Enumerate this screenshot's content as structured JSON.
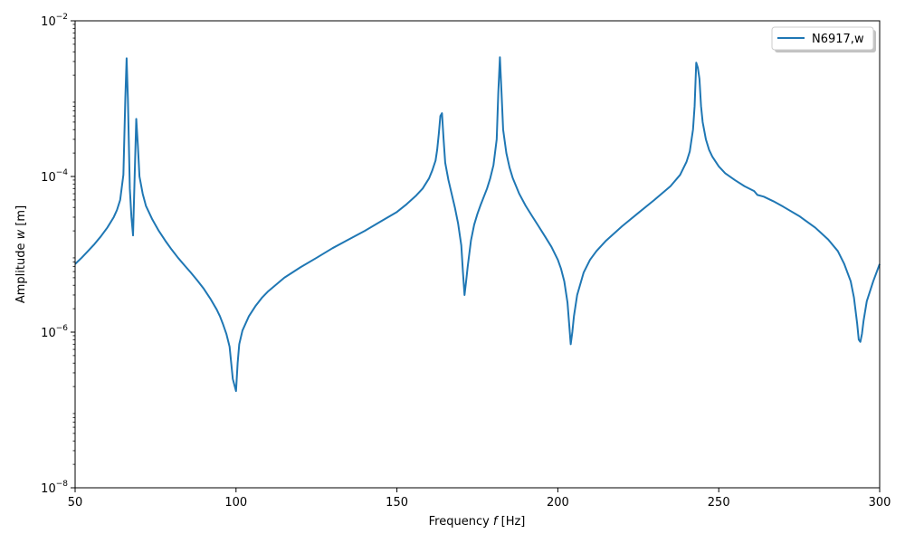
{
  "chart_data": {
    "type": "line",
    "title": "",
    "xlabel": "Frequency f [Hz]",
    "ylabel": "Amplitude w [m]",
    "xlim": [
      50,
      300
    ],
    "ylim": [
      1e-08,
      0.01
    ],
    "yscale": "log",
    "grid": false,
    "legend_position": "top-right",
    "x_ticks": [
      {
        "value": 50,
        "label": "50"
      },
      {
        "value": 100,
        "label": "100"
      },
      {
        "value": 150,
        "label": "150"
      },
      {
        "value": 200,
        "label": "200"
      },
      {
        "value": 250,
        "label": "250"
      },
      {
        "value": 300,
        "label": "300"
      }
    ],
    "y_ticks": [
      {
        "value": 1e-08,
        "base": "10",
        "exp": "−8"
      },
      {
        "value": 1e-06,
        "base": "10",
        "exp": "−6"
      },
      {
        "value": 0.0001,
        "base": "10",
        "exp": "−4"
      },
      {
        "value": 0.01,
        "base": "10",
        "exp": "−2"
      }
    ],
    "series": [
      {
        "name": "N6917,w",
        "color": "#1f77b4",
        "points": [
          [
            50,
            7.5e-06
          ],
          [
            52,
            9e-06
          ],
          [
            54,
            1.1e-05
          ],
          [
            56,
            1.35e-05
          ],
          [
            58,
            1.7e-05
          ],
          [
            60,
            2.2e-05
          ],
          [
            62,
            3e-05
          ],
          [
            63,
            3.7e-05
          ],
          [
            64,
            5e-05
          ],
          [
            65,
            0.000105
          ],
          [
            65.6,
            0.001
          ],
          [
            66,
            0.0033
          ],
          [
            66.4,
            0.001
          ],
          [
            67,
            7e-05
          ],
          [
            67.5,
            3e-05
          ],
          [
            68,
            1.75e-05
          ],
          [
            68.5,
            0.0001
          ],
          [
            69,
            0.00055
          ],
          [
            69.5,
            0.00025
          ],
          [
            70,
            0.0001
          ],
          [
            71,
            6e-05
          ],
          [
            72,
            4.2e-05
          ],
          [
            74,
            2.8e-05
          ],
          [
            76,
            2e-05
          ],
          [
            78,
            1.5e-05
          ],
          [
            80,
            1.15e-05
          ],
          [
            82,
            9e-06
          ],
          [
            84,
            7.2e-06
          ],
          [
            86,
            5.8e-06
          ],
          [
            88,
            4.6e-06
          ],
          [
            90,
            3.6e-06
          ],
          [
            92,
            2.7e-06
          ],
          [
            94,
            1.95e-06
          ],
          [
            95,
            1.6e-06
          ],
          [
            96,
            1.25e-06
          ],
          [
            97,
            9.5e-07
          ],
          [
            98,
            6.5e-07
          ],
          [
            99,
            2.5e-07
          ],
          [
            100,
            1.75e-07
          ],
          [
            100.5,
            4e-07
          ],
          [
            101,
            7e-07
          ],
          [
            102,
            1.05e-06
          ],
          [
            104,
            1.6e-06
          ],
          [
            106,
            2.15e-06
          ],
          [
            108,
            2.75e-06
          ],
          [
            110,
            3.35e-06
          ],
          [
            115,
            5e-06
          ],
          [
            120,
            6.8e-06
          ],
          [
            125,
            9e-06
          ],
          [
            130,
            1.2e-05
          ],
          [
            135,
            1.55e-05
          ],
          [
            140,
            2e-05
          ],
          [
            145,
            2.65e-05
          ],
          [
            150,
            3.5e-05
          ],
          [
            153,
            4.4e-05
          ],
          [
            156,
            5.7e-05
          ],
          [
            158,
            7e-05
          ],
          [
            160,
            9.5e-05
          ],
          [
            161,
            0.00012
          ],
          [
            162,
            0.00016
          ],
          [
            162.5,
            0.00022
          ],
          [
            163,
            0.00035
          ],
          [
            163.5,
            0.0006
          ],
          [
            164,
            0.00065
          ],
          [
            164.5,
            0.0003
          ],
          [
            165,
            0.00015
          ],
          [
            166,
            9e-05
          ],
          [
            167,
            6e-05
          ],
          [
            168,
            4e-05
          ],
          [
            169,
            2.5e-05
          ],
          [
            170,
            1.3e-05
          ],
          [
            170.5,
            6e-06
          ],
          [
            171,
            3e-06
          ],
          [
            171.5,
            4.5e-06
          ],
          [
            172,
            7e-06
          ],
          [
            173,
            1.5e-05
          ],
          [
            174,
            2.4e-05
          ],
          [
            175,
            3.3e-05
          ],
          [
            176,
            4.3e-05
          ],
          [
            178,
            7e-05
          ],
          [
            179,
            9.5e-05
          ],
          [
            180,
            0.00014
          ],
          [
            181,
            0.0003
          ],
          [
            181.5,
            0.0012
          ],
          [
            182,
            0.0034
          ],
          [
            182.5,
            0.0012
          ],
          [
            183,
            0.0004
          ],
          [
            184,
            0.0002
          ],
          [
            185,
            0.00013
          ],
          [
            186,
            9.5e-05
          ],
          [
            188,
            6e-05
          ],
          [
            190,
            4.2e-05
          ],
          [
            192,
            3.1e-05
          ],
          [
            194,
            2.3e-05
          ],
          [
            196,
            1.7e-05
          ],
          [
            198,
            1.25e-05
          ],
          [
            200,
            8.5e-06
          ],
          [
            201,
            6.5e-06
          ],
          [
            202,
            4.5e-06
          ],
          [
            203,
            2.4e-06
          ],
          [
            203.5,
            1.3e-06
          ],
          [
            204,
            7e-07
          ],
          [
            204.5,
            1e-06
          ],
          [
            205,
            1.6e-06
          ],
          [
            206,
            3e-06
          ],
          [
            208,
            5.8e-06
          ],
          [
            210,
            8.5e-06
          ],
          [
            212,
            1.1e-05
          ],
          [
            215,
            1.5e-05
          ],
          [
            220,
            2.3e-05
          ],
          [
            225,
            3.4e-05
          ],
          [
            230,
            5e-05
          ],
          [
            235,
            7.5e-05
          ],
          [
            238,
            0.000105
          ],
          [
            240,
            0.000155
          ],
          [
            241,
            0.00021
          ],
          [
            242,
            0.0004
          ],
          [
            242.5,
            0.0008
          ],
          [
            243,
            0.0029
          ],
          [
            243.5,
            0.0025
          ],
          [
            244,
            0.0018
          ],
          [
            244.5,
            0.0008
          ],
          [
            245,
            0.0005
          ],
          [
            246,
            0.0003
          ],
          [
            247,
            0.00022
          ],
          [
            248,
            0.00018
          ],
          [
            250,
            0.000135
          ],
          [
            252,
            0.00011
          ],
          [
            255,
            9e-05
          ],
          [
            258,
            7.5e-05
          ],
          [
            261,
            6.5e-05
          ],
          [
            262,
            5.8e-05
          ],
          [
            264,
            5.5e-05
          ],
          [
            267,
            4.8e-05
          ],
          [
            270,
            4.1e-05
          ],
          [
            275,
            3.1e-05
          ],
          [
            280,
            2.2e-05
          ],
          [
            284,
            1.55e-05
          ],
          [
            287,
            1.1e-05
          ],
          [
            289,
            7.5e-06
          ],
          [
            291,
            4.5e-06
          ],
          [
            292,
            2.8e-06
          ],
          [
            293,
            1.3e-06
          ],
          [
            293.5,
            8e-07
          ],
          [
            294,
            7.5e-07
          ],
          [
            294.5,
            9.5e-07
          ],
          [
            295,
            1.4e-06
          ],
          [
            296,
            2.5e-06
          ],
          [
            298,
            4.5e-06
          ],
          [
            300,
            7.5e-06
          ]
        ]
      }
    ]
  }
}
